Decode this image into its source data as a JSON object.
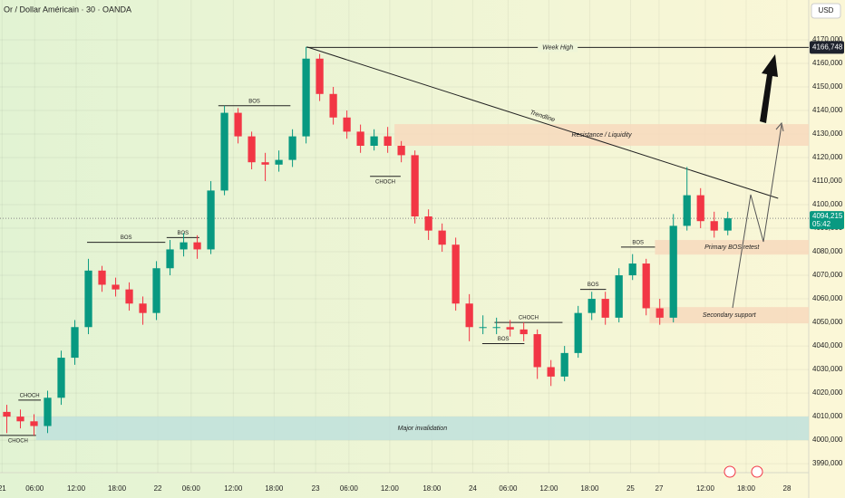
{
  "chart_data": {
    "type": "candlestick",
    "title": "Or / Dollar Américain · 30 · OANDA",
    "currency": "USD",
    "up_color": "#089981",
    "down_color": "#f23645",
    "x": [
      1,
      3,
      5,
      7,
      9,
      11,
      13,
      15,
      17,
      19,
      21,
      23,
      25,
      27,
      29,
      31,
      33,
      35,
      37,
      39,
      41,
      43,
      45,
      47,
      49,
      51,
      53,
      55,
      57,
      59,
      61,
      63,
      65,
      67,
      69,
      71,
      73,
      75,
      77,
      79,
      81,
      83,
      85,
      87,
      89,
      91,
      93,
      95,
      97,
      99,
      101,
      103,
      105,
      107
    ],
    "open": [
      4012,
      4010,
      4008,
      4006,
      4018,
      4035,
      4048,
      4072,
      4066,
      4064,
      4058,
      4054,
      4073,
      4081,
      4084,
      4081,
      4106,
      4139,
      4129,
      4118,
      4117,
      4119,
      4129,
      4162,
      4147,
      4137,
      4131,
      4125,
      4129,
      4125,
      4121,
      4095,
      4089,
      4083,
      4058,
      4048,
      4048,
      4048,
      4047,
      4045,
      4031,
      4027,
      4037,
      4054,
      4060,
      4052,
      4070,
      4075,
      4056,
      4052,
      4091,
      4104,
      4093,
      4089
    ],
    "high": [
      4015,
      4013,
      4011,
      4021,
      4038,
      4051,
      4077,
      4074,
      4069,
      4067,
      4061,
      4076,
      4085,
      4088,
      4087,
      4110,
      4142,
      4141,
      4131,
      4122,
      4123,
      4132,
      4167,
      4164,
      4150,
      4140,
      4134,
      4132,
      4133,
      4127,
      4123,
      4098,
      4092,
      4086,
      4062,
      4053,
      4052,
      4051,
      4050,
      4047,
      4034,
      4040,
      4057,
      4063,
      4063,
      4073,
      4079,
      4077,
      4060,
      4096,
      4116,
      4107,
      4097,
      4097
    ],
    "low": [
      4003,
      4005,
      4002,
      4003,
      4015,
      4032,
      4045,
      4063,
      4061,
      4055,
      4049,
      4051,
      4070,
      4078,
      4077,
      4079,
      4104,
      4126,
      4115,
      4110,
      4114,
      4116,
      4126,
      4144,
      4134,
      4128,
      4122,
      4123,
      4122,
      4118,
      4092,
      4085,
      4080,
      4055,
      4042,
      4045,
      4045,
      4044,
      4042,
      4026,
      4023,
      4025,
      4035,
      4051,
      4049,
      4050,
      4068,
      4053,
      4049,
      4050,
      4089,
      4090,
      4086,
      4087
    ],
    "close": [
      4010,
      4008,
      4006,
      4018,
      4035,
      4048,
      4072,
      4066,
      4064,
      4058,
      4054,
      4073,
      4081,
      4084,
      4081,
      4106,
      4139,
      4129,
      4118,
      4117,
      4119,
      4129,
      4162,
      4147,
      4137,
      4131,
      4125,
      4129,
      4125,
      4121,
      4095,
      4089,
      4083,
      4058,
      4048,
      4048,
      4048,
      4047,
      4045,
      4031,
      4027,
      4037,
      4054,
      4060,
      4052,
      4070,
      4075,
      4056,
      4052,
      4091,
      4104,
      4093,
      4089,
      4094.2
    ],
    "xlim": [
      0,
      118.9
    ],
    "ylim": [
      3986.2,
      4186.9
    ],
    "xticks": [
      {
        "value": 0.3,
        "label": "21"
      },
      {
        "value": 5.1,
        "label": "06:00"
      },
      {
        "value": 11.2,
        "label": "12:00"
      },
      {
        "value": 17.2,
        "label": "18:00"
      },
      {
        "value": 23.2,
        "label": "22"
      },
      {
        "value": 28.1,
        "label": "06:00"
      },
      {
        "value": 34.3,
        "label": "12:00"
      },
      {
        "value": 40.3,
        "label": "18:00"
      },
      {
        "value": 46.4,
        "label": "23"
      },
      {
        "value": 51.3,
        "label": "06:00"
      },
      {
        "value": 57.3,
        "label": "12:00"
      },
      {
        "value": 63.5,
        "label": "18:00"
      },
      {
        "value": 69.5,
        "label": "24"
      },
      {
        "value": 74.7,
        "label": "06:00"
      },
      {
        "value": 80.7,
        "label": "12:00"
      },
      {
        "value": 86.7,
        "label": "18:00"
      },
      {
        "value": 92.7,
        "label": "25"
      },
      {
        "value": 96.9,
        "label": "27"
      },
      {
        "value": 103.7,
        "label": "12:00"
      },
      {
        "value": 109.7,
        "label": "18:00"
      },
      {
        "value": 115.7,
        "label": "28"
      }
    ],
    "yticks": [
      {
        "value": 4170,
        "label": "4170,000"
      },
      {
        "value": 4160,
        "label": "4160,000"
      },
      {
        "value": 4150,
        "label": "4150,000"
      },
      {
        "value": 4140,
        "label": "4140,000"
      },
      {
        "value": 4130,
        "label": "4130,000"
      },
      {
        "value": 4120,
        "label": "4120,000"
      },
      {
        "value": 4110,
        "label": "4110,000"
      },
      {
        "value": 4100,
        "label": "4100,000"
      },
      {
        "value": 4090,
        "label": "4090,000"
      },
      {
        "value": 4080,
        "label": "4080,000"
      },
      {
        "value": 4070,
        "label": "4070,000"
      },
      {
        "value": 4060,
        "label": "4060,000"
      },
      {
        "value": 4050,
        "label": "4050,000"
      },
      {
        "value": 4040,
        "label": "4040,000"
      },
      {
        "value": 4030,
        "label": "4030,000"
      },
      {
        "value": 4020,
        "label": "4020,000"
      },
      {
        "value": 4010,
        "label": "4010,000"
      },
      {
        "value": 4000,
        "label": "4000,000"
      },
      {
        "value": 3990,
        "label": "3990,000"
      }
    ],
    "grid": true,
    "zones": [
      {
        "label": "Resistance / Liquidity",
        "x": [
          58,
          118.9
        ],
        "y": [
          4125,
          4134.2
        ],
        "color": "#f7d9bd"
      },
      {
        "label": "Primary BOS retest",
        "x": [
          96.3,
          118.9
        ],
        "y": [
          4078.8,
          4085
        ],
        "color": "#f7d9bd"
      },
      {
        "label": "Secondary support",
        "x": [
          95.5,
          118.9
        ],
        "y": [
          4049.6,
          4056.5
        ],
        "color": "#f7d9bd"
      },
      {
        "label": "Major invalidation",
        "x": [
          5.3,
          118.9
        ],
        "y": [
          4000,
          4010
        ],
        "color": "#bfe0dc"
      }
    ],
    "week_high": {
      "label": "Week High",
      "x": [
        45.1,
        118.9
      ],
      "value": 4166.748,
      "price_label": "4166,748"
    },
    "trendline": {
      "label": "Trendline",
      "x": [
        45.1,
        114.4
      ],
      "y": [
        4167,
        4102.7
      ]
    },
    "current_price": {
      "value": 4094.215,
      "label": "4094,215",
      "countdown": "05:42"
    },
    "annotations": [
      {
        "text": "CHOCH",
        "x": [
          2.7,
          6.0
        ],
        "y": 4017
      },
      {
        "text": "CHOCH",
        "x": [
          0,
          5.3
        ],
        "y": 4002,
        "label_position": "below"
      },
      {
        "text": "BOS",
        "x": [
          12.8,
          24.3
        ],
        "y": 4084
      },
      {
        "text": "BOS",
        "x": [
          24.5,
          29.3
        ],
        "y": 4086
      },
      {
        "text": "BOS",
        "x": [
          32.1,
          42.7
        ],
        "y": 4142
      },
      {
        "text": "CHOCH",
        "x": [
          54.4,
          58.9
        ],
        "y": 4112,
        "label_position": "below"
      },
      {
        "text": "CHOCH",
        "x": [
          72.7,
          82.7
        ],
        "y": 4050
      },
      {
        "text": "BOS",
        "x": [
          70.9,
          77.1
        ],
        "y": 4041
      },
      {
        "text": "BOS",
        "x": [
          85.3,
          89.1
        ],
        "y": 4064
      },
      {
        "text": "BOS",
        "x": [
          91.3,
          96.3
        ],
        "y": 4082
      }
    ]
  }
}
